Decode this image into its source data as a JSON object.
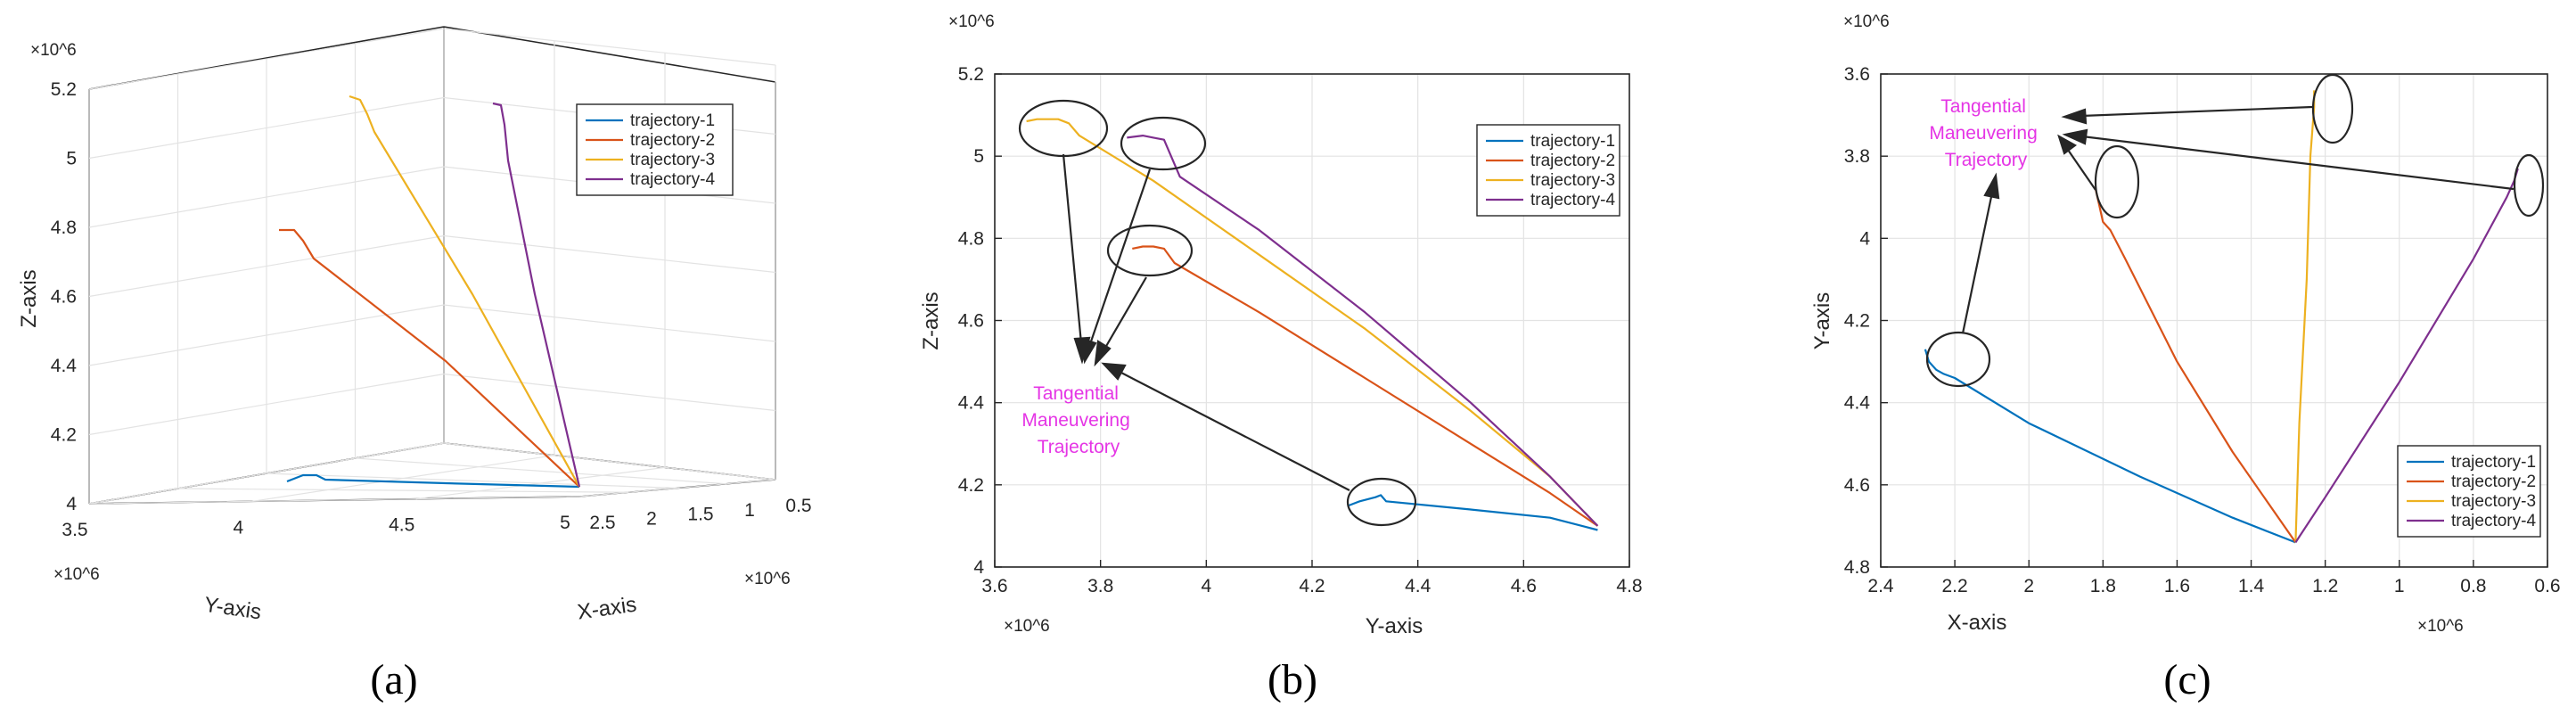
{
  "series_colors": {
    "trajectory-1": "#0072BD",
    "trajectory-2": "#D95319",
    "trajectory-3": "#EDB120",
    "trajectory-4": "#7E2F8E"
  },
  "chart_data": [
    {
      "id": "a",
      "type": "line3d",
      "panel_label": "(a)",
      "xlabel": "X-axis",
      "ylabel": "Y-axis",
      "zlabel": "Z-axis",
      "x_exponent": "×10^6",
      "y_exponent": "×10^6",
      "z_exponent": "×10^6",
      "xlim": [
        0.5,
        2.5
      ],
      "ylim": [
        3.5,
        5.0
      ],
      "zlim": [
        4.0,
        5.2
      ],
      "xticks": [
        "0.5",
        "1",
        "1.5",
        "2",
        "2.5"
      ],
      "yticks": [
        "3.5",
        "4",
        "4.5",
        "5"
      ],
      "zticks": [
        "4",
        "4.2",
        "4.4",
        "4.6",
        "4.8",
        "5",
        "5.2"
      ],
      "legend": [
        "trajectory-1",
        "trajectory-2",
        "trajectory-3",
        "trajectory-4"
      ],
      "legend_position": "top-right",
      "grid": true,
      "series": [
        {
          "name": "trajectory-1",
          "x": [
            2.28,
            2.24,
            2.18,
            2.1,
            1.6,
            1.28
          ],
          "y": [
            4.3,
            4.28,
            4.32,
            4.34,
            4.55,
            4.74
          ],
          "z": [
            4.15,
            4.16,
            4.17,
            4.16,
            4.13,
            4.1
          ]
        },
        {
          "name": "trajectory-2",
          "x": [
            1.82,
            1.8,
            1.78,
            1.72,
            1.5,
            1.28
          ],
          "y": [
            3.9,
            3.88,
            3.95,
            4.05,
            4.4,
            4.74
          ],
          "z": [
            4.78,
            4.78,
            4.77,
            4.73,
            4.45,
            4.1
          ]
        },
        {
          "name": "trajectory-3",
          "x": [
            1.24,
            1.24,
            1.24,
            1.25,
            1.27,
            1.28
          ],
          "y": [
            3.68,
            3.7,
            3.8,
            4.0,
            4.4,
            4.74
          ],
          "z": [
            5.08,
            5.08,
            5.07,
            5.0,
            4.6,
            4.1
          ]
        },
        {
          "name": "trajectory-4",
          "x": [
            0.68,
            0.7,
            0.75,
            0.9,
            1.1,
            1.28
          ],
          "y": [
            3.86,
            3.95,
            4.05,
            4.25,
            4.5,
            4.74
          ],
          "z": [
            5.04,
            5.04,
            5.02,
            4.9,
            4.55,
            4.1
          ]
        }
      ]
    },
    {
      "id": "b",
      "type": "line",
      "panel_label": "(b)",
      "xlabel": "Y-axis",
      "ylabel": "Z-axis",
      "x_exponent": "×10^6",
      "y_exponent": "×10^6",
      "xlim": [
        3.6,
        4.8
      ],
      "ylim": [
        4.0,
        5.2
      ],
      "xticks": [
        "3.6",
        "3.8",
        "4",
        "4.2",
        "4.4",
        "4.6",
        "4.8"
      ],
      "yticks": [
        "4",
        "4.2",
        "4.4",
        "4.6",
        "4.8",
        "5",
        "5.2"
      ],
      "legend": [
        "trajectory-1",
        "trajectory-2",
        "trajectory-3",
        "trajectory-4"
      ],
      "legend_position": "top-right",
      "grid": true,
      "annotation": [
        "Tangential",
        "Maneuvering",
        "Trajectory"
      ],
      "series": [
        {
          "name": "trajectory-1",
          "x": [
            4.27,
            4.29,
            4.32,
            4.33,
            4.34,
            4.5,
            4.65,
            4.74
          ],
          "y": [
            4.15,
            4.16,
            4.17,
            4.175,
            4.16,
            4.14,
            4.12,
            4.09
          ]
        },
        {
          "name": "trajectory-2",
          "x": [
            3.86,
            3.88,
            3.9,
            3.92,
            3.94,
            4.1,
            4.3,
            4.5,
            4.65,
            4.74
          ],
          "y": [
            4.775,
            4.78,
            4.78,
            4.775,
            4.74,
            4.62,
            4.46,
            4.3,
            4.18,
            4.1
          ]
        },
        {
          "name": "trajectory-3",
          "x": [
            3.66,
            3.68,
            3.7,
            3.72,
            3.74,
            3.76,
            3.9,
            4.1,
            4.3,
            4.5,
            4.65,
            4.74
          ],
          "y": [
            5.085,
            5.09,
            5.09,
            5.09,
            5.08,
            5.05,
            4.94,
            4.76,
            4.58,
            4.38,
            4.22,
            4.1
          ]
        },
        {
          "name": "trajectory-4",
          "x": [
            3.85,
            3.88,
            3.9,
            3.92,
            3.95,
            4.1,
            4.3,
            4.5,
            4.65,
            4.74
          ],
          "y": [
            5.045,
            5.05,
            5.045,
            5.04,
            4.95,
            4.82,
            4.62,
            4.4,
            4.22,
            4.1
          ]
        }
      ]
    },
    {
      "id": "c",
      "type": "line",
      "panel_label": "(c)",
      "xlabel": "X-axis",
      "ylabel": "Y-axis",
      "x_exponent": "×10^6",
      "y_exponent": "×10^6",
      "xlim": [
        2.4,
        0.6
      ],
      "ylim": [
        4.8,
        3.6
      ],
      "xticks": [
        "2.4",
        "2.2",
        "2",
        "1.8",
        "1.6",
        "1.4",
        "1.2",
        "1",
        "0.8",
        "0.6"
      ],
      "yticks": [
        "3.6",
        "3.8",
        "4",
        "4.2",
        "4.4",
        "4.6",
        "4.8"
      ],
      "legend": [
        "trajectory-1",
        "trajectory-2",
        "trajectory-3",
        "trajectory-4"
      ],
      "legend_position": "bottom-right",
      "grid": true,
      "annotation": [
        "Tangential",
        "Maneuvering",
        "Trajectory"
      ],
      "series": [
        {
          "name": "trajectory-1",
          "x": [
            2.28,
            2.27,
            2.25,
            2.23,
            2.2,
            2.0,
            1.7,
            1.45,
            1.28
          ],
          "y": [
            4.27,
            4.3,
            4.32,
            4.33,
            4.34,
            4.45,
            4.58,
            4.68,
            4.74
          ]
        },
        {
          "name": "trajectory-2",
          "x": [
            1.82,
            1.81,
            1.8,
            1.78,
            1.74,
            1.6,
            1.45,
            1.28
          ],
          "y": [
            3.88,
            3.92,
            3.96,
            3.98,
            4.05,
            4.3,
            4.52,
            4.74
          ]
        },
        {
          "name": "trajectory-3",
          "x": [
            1.23,
            1.23,
            1.24,
            1.25,
            1.27,
            1.28
          ],
          "y": [
            3.64,
            3.68,
            3.8,
            4.1,
            4.45,
            4.74
          ]
        },
        {
          "name": "trajectory-4",
          "x": [
            0.68,
            0.69,
            0.71,
            0.8,
            1.0,
            1.2,
            1.28
          ],
          "y": [
            3.83,
            3.86,
            3.9,
            4.05,
            4.35,
            4.63,
            4.74
          ]
        }
      ]
    }
  ]
}
